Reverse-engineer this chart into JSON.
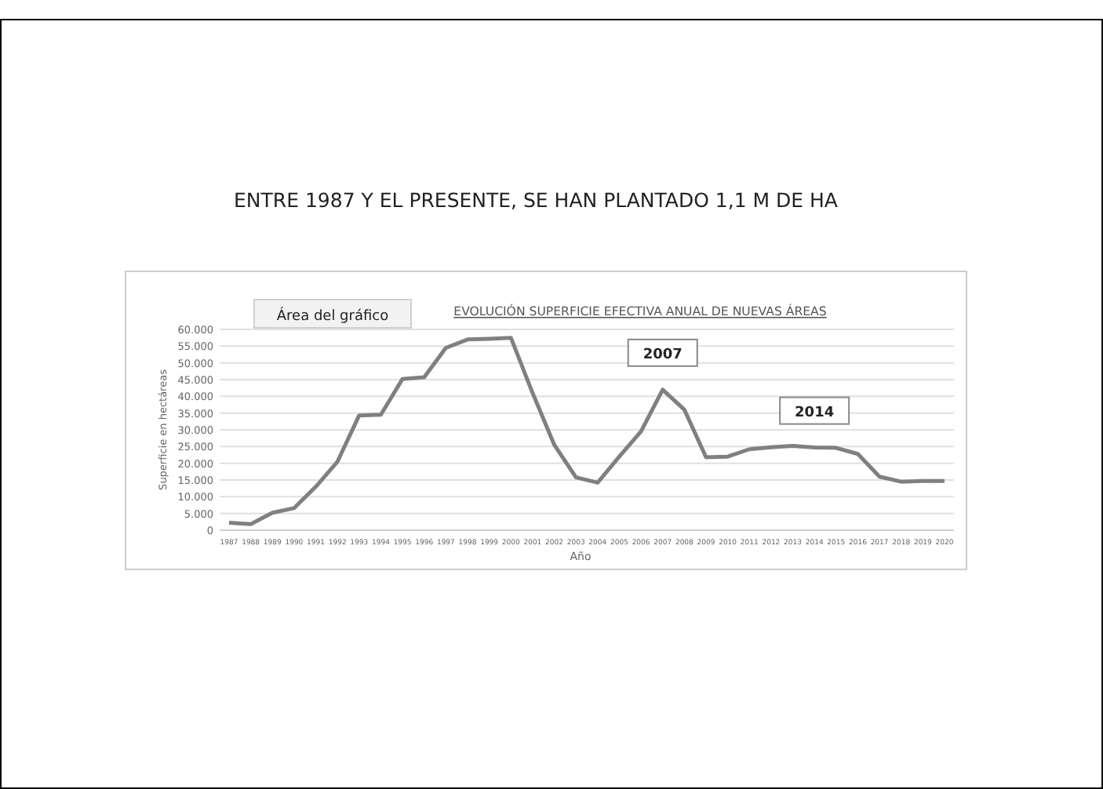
{
  "chart_data": {
    "type": "line",
    "title": "ENTRE 1987 Y EL PRESENTE, SE HAN PLANTADO 1,1 M DE HA",
    "subtitle": "EVOLUCIÓN SUPERFICIE EFECTIVA ANUAL DE NUEVAS ÁREAS",
    "xlabel": "Año",
    "ylabel": "Superficie en hectáreas",
    "categories": [
      "1987",
      "1988",
      "1989",
      "1990",
      "1991",
      "1992",
      "1993",
      "1994",
      "1995",
      "1996",
      "1997",
      "1998",
      "1999",
      "2000",
      "2001",
      "2002",
      "2003",
      "2004",
      "2005",
      "2006",
      "2007",
      "2008",
      "2009",
      "2010",
      "2011",
      "2012",
      "2013",
      "2014",
      "2015",
      "2016",
      "2017",
      "2018",
      "2019",
      "2020"
    ],
    "series": [
      {
        "color": "#808080",
        "values": [
          2200,
          1800,
          5200,
          6600,
          13000,
          20500,
          34300,
          34500,
          45200,
          45700,
          54500,
          57000,
          57200,
          57500,
          41000,
          25500,
          15800,
          14200,
          22000,
          29500,
          42000,
          36000,
          21800,
          22000,
          24200,
          24800,
          25200,
          24700,
          24600,
          22800,
          16000,
          14500,
          14700,
          14700
        ]
      }
    ],
    "ylim": [
      0,
      60000
    ],
    "yticks": [
      0,
      {
        "value": 5000,
        "label": "5.000"
      },
      {
        "value": 10000,
        "label": "10.000"
      },
      {
        "value": 15000,
        "label": "15.000"
      },
      {
        "value": 20000,
        "label": "20.000"
      },
      {
        "value": 25000,
        "label": "25.000"
      },
      {
        "value": 30000,
        "label": "30.000"
      },
      {
        "value": 35000,
        "label": "35.000"
      },
      {
        "value": 40000,
        "label": "40.000"
      },
      {
        "value": 45000,
        "label": "45.000"
      },
      {
        "value": 50000,
        "label": "50.000"
      },
      {
        "value": 55000,
        "label": "55.000"
      },
      {
        "value": 60000,
        "label": "60.000"
      }
    ],
    "grid": "y",
    "marker": "none",
    "line_style": "solid",
    "annotations": [
      "Área del gráfico",
      {
        "text": "2007",
        "x": "2007",
        "y": 42000
      },
      {
        "text": "2014",
        "x": "2014",
        "y": 24700
      }
    ]
  }
}
